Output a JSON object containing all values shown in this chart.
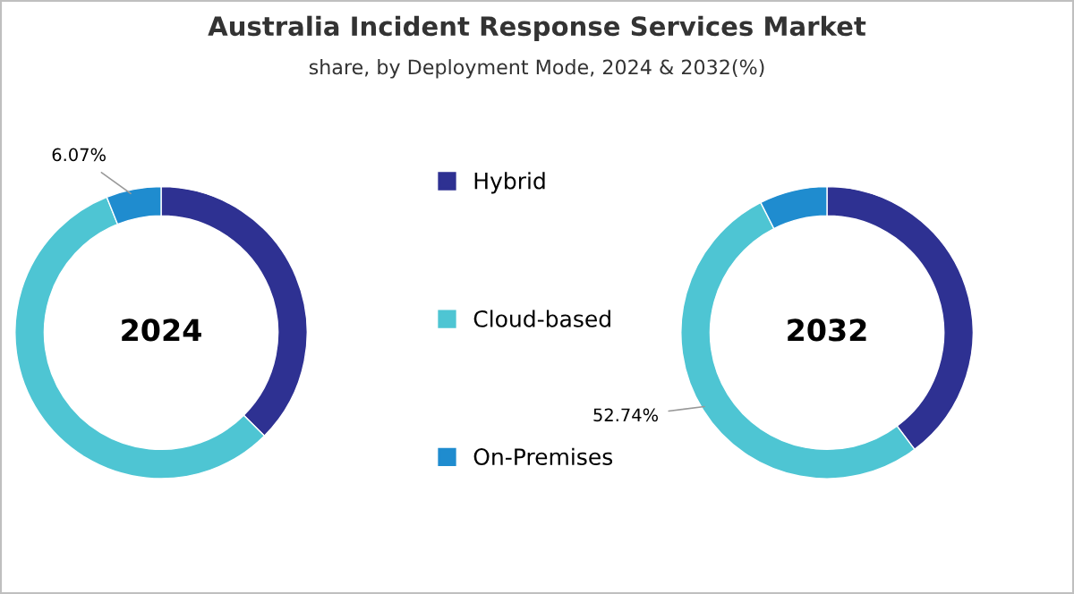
{
  "chart_data": [
    {
      "type": "donut",
      "title": "Australia Incident Response Services Market",
      "subtitle": "share, by Deployment Mode, 2024 & 2032(%)",
      "annotations": [
        "2024"
      ],
      "categories": [
        "Hybrid",
        "Cloud-based",
        "On-Premises"
      ],
      "values": [
        37.5,
        56.43,
        6.07
      ],
      "colors": [
        "#2e3192",
        "#4ec5d3",
        "#1f8ccf"
      ],
      "value_labels": [
        null,
        null,
        "6.07%"
      ],
      "legend": "right"
    },
    {
      "type": "donut",
      "annotations": [
        "2032"
      ],
      "categories": [
        null,
        null,
        null
      ],
      "values": [
        39.76,
        52.74,
        7.5
      ],
      "colors": [
        "#2e3192",
        "#4ec5d3",
        "#1f8ccf"
      ],
      "value_labels": [
        null,
        "52.74%",
        null
      ]
    }
  ]
}
